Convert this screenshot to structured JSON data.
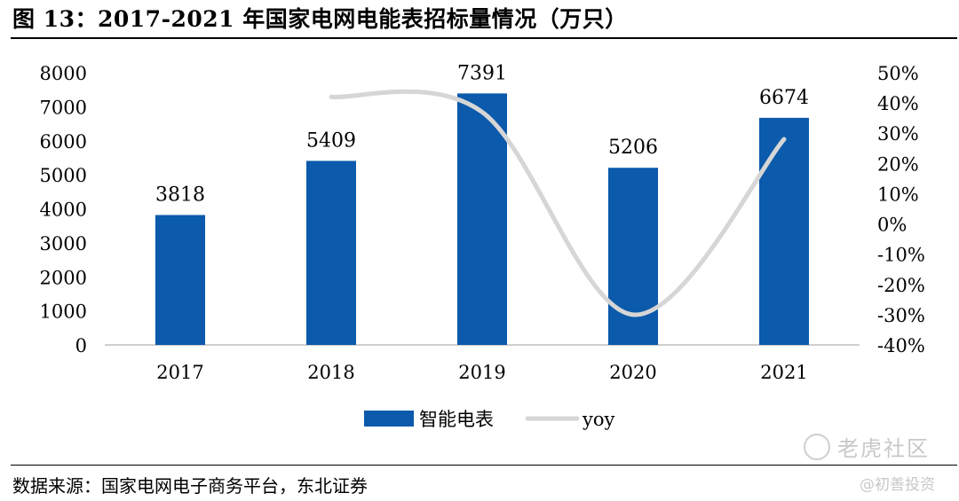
{
  "title": "图 13：2017-2021 年国家电网电能表招标量情况（万只）",
  "source": "数据来源：国家电网电子商务平台，东北证券",
  "watermark": {
    "logo_icon": "swirl-logo-icon",
    "brand": "老虎社区",
    "author": "@初善投资"
  },
  "colors": {
    "bar": "#0b5aab",
    "line": "#d6d6d6",
    "axis": "#bfbfbf"
  },
  "chart_data": {
    "type": "bar",
    "categories": [
      "2017",
      "2018",
      "2019",
      "2020",
      "2021"
    ],
    "series": [
      {
        "name": "智能电表",
        "type": "bar",
        "axis": "left",
        "values": [
          3818,
          5409,
          7391,
          5206,
          6674
        ],
        "data_labels": [
          "3818",
          "5409",
          "7391",
          "5206",
          "6674"
        ]
      },
      {
        "name": "yoy",
        "type": "line",
        "axis": "right",
        "smooth": true,
        "values": [
          null,
          42,
          37,
          -30,
          28
        ]
      }
    ],
    "y_left": {
      "min": 0,
      "max": 8000,
      "ticks": [
        0,
        1000,
        2000,
        3000,
        4000,
        5000,
        6000,
        7000,
        8000
      ],
      "tick_labels": [
        "0",
        "1000",
        "2000",
        "3000",
        "4000",
        "5000",
        "6000",
        "7000",
        "8000"
      ]
    },
    "y_right": {
      "min": -40,
      "max": 50,
      "ticks": [
        -40,
        -30,
        -20,
        -10,
        0,
        10,
        20,
        30,
        40,
        50
      ],
      "tick_labels": [
        "-40%",
        "-30%",
        "-20%",
        "-10%",
        "0%",
        "10%",
        "20%",
        "30%",
        "40%",
        "50%"
      ]
    },
    "grid": false,
    "legend": "bottom"
  }
}
